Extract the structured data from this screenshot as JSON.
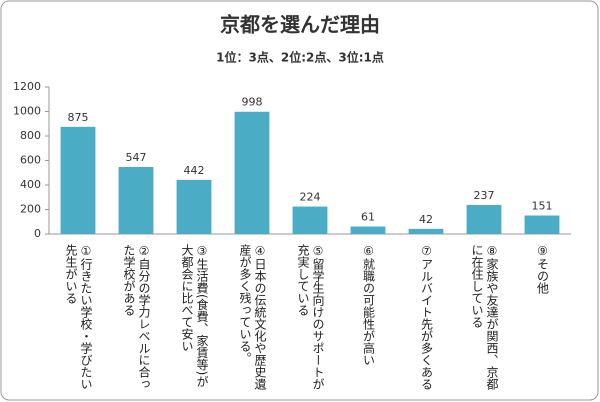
{
  "chart_data": {
    "type": "bar",
    "title": "京都を選んだ理由",
    "subtitle": "1位：3点、2位:2点、3位:1点",
    "categories": [
      "①行きたい学校・学びたい先生がいる",
      "②自分の学力レベルに合った学校がある",
      "③生活費(食費、家賃等)が大都会に比べて安い",
      "④日本の伝統文化や歴史遺産が多く残っている。",
      "⑤留学生向けのサポートが充実している",
      "⑥就職の可能性が高い",
      "⑦アルバイト先が多くある",
      "⑧家族や友達が関西、京都に在住している",
      "⑨その他"
    ],
    "values": [
      875,
      547,
      442,
      998,
      224,
      61,
      42,
      237,
      151
    ],
    "color": "#4bacc6",
    "ylim": [
      0,
      1200
    ],
    "yticks": [
      0,
      200,
      400,
      600,
      800,
      1000,
      1200
    ],
    "grid": false
  }
}
